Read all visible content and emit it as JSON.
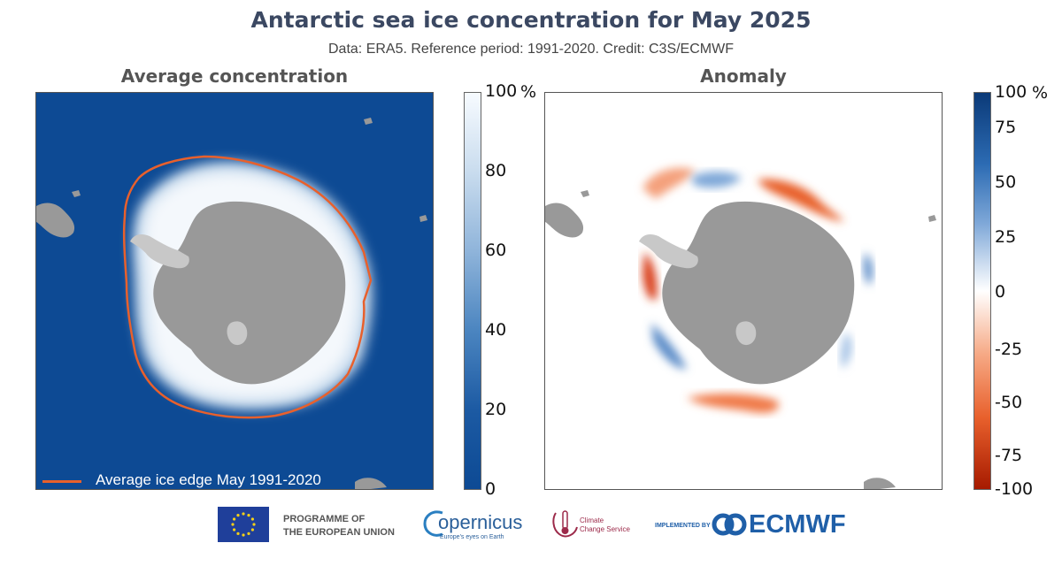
{
  "header": {
    "title": "Antarctic sea ice concentration for May 2025",
    "subtitle": "Data: ERA5.  Reference period: 1991-2020.  Credit: C3S/ECMWF"
  },
  "left_panel": {
    "title": "Average concentration",
    "legend_label": "Average ice edge May 1991-2020",
    "colorbar": {
      "unit": "%",
      "ticks": [
        "100",
        "80",
        "60",
        "40",
        "20",
        "0"
      ],
      "colors": [
        "#f7fbff",
        "#c9dcee",
        "#8fb4da",
        "#4b85c0",
        "#1c5aa3",
        "#0d4a94"
      ]
    }
  },
  "right_panel": {
    "title": "Anomaly",
    "colorbar": {
      "unit": "%",
      "ticks": [
        "100",
        "75",
        "50",
        "25",
        "0",
        "-25",
        "-50",
        "-75",
        "-100"
      ],
      "colors": [
        "#0b3a78",
        "#2c6bb3",
        "#7fa8d8",
        "#ffffff",
        "#f6a985",
        "#e8602c",
        "#a61a00"
      ]
    }
  },
  "colors": {
    "ocean": "#0d4a94",
    "land": "#999999",
    "ice_edge": "#e8602c",
    "title": "#3b4862"
  },
  "footer": {
    "eu_line1": "PROGRAMME OF",
    "eu_line2": "THE EUROPEAN UNION",
    "copernicus": "opernicus",
    "copernicus_tagline": "Europe's eyes on Earth",
    "c3s_line1": "Climate",
    "c3s_line2": "Change Service",
    "implemented_by": "IMPLEMENTED BY",
    "ecmwf": "ECMWF"
  }
}
